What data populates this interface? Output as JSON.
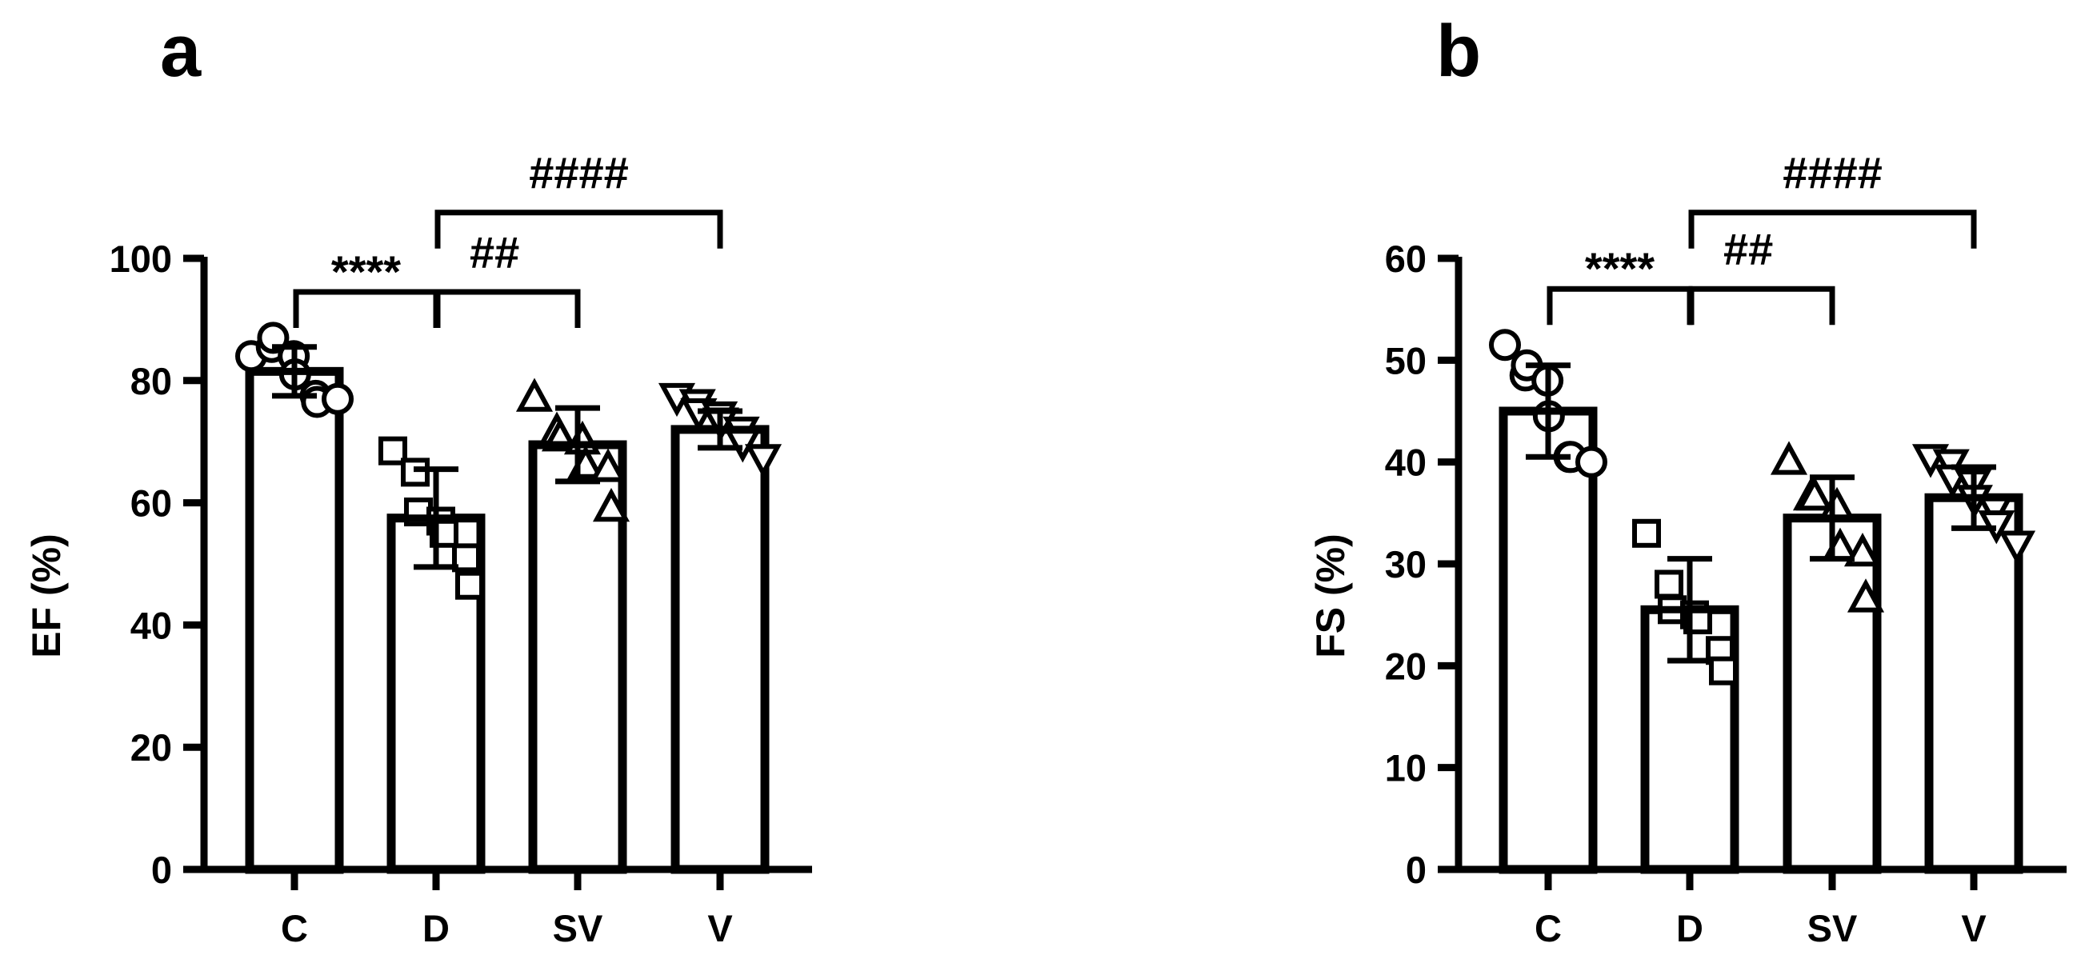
{
  "colors": {
    "ink": "#000000",
    "fill": "#ffffff"
  },
  "chart_data": [
    {
      "type": "bar",
      "panel_label": "a",
      "categories": [
        "C",
        "D",
        "SV",
        "V"
      ],
      "ylabel": "EF (%)",
      "xlabel": "",
      "ylim": [
        0,
        100
      ],
      "yticks": [
        "0",
        "20",
        "40",
        "60",
        "80",
        "100"
      ],
      "grid": false,
      "series": [
        {
          "values": [
            81.5,
            57.5,
            69.5,
            72
          ],
          "error": [
            4,
            8,
            6,
            3
          ],
          "markers": [
            "circle",
            "square",
            "triangle-up",
            "triangle-down"
          ],
          "points": [
            [
              84,
              85.5,
              87,
              84,
              81,
              77.5,
              76.5,
              77
            ],
            [
              68.5,
              65,
              58.5,
              57,
              55,
              51,
              46.5
            ],
            [
              77,
              71.5,
              70.5,
              70,
              66,
              65.5,
              59
            ],
            [
              77.5,
              76.5,
              75,
              74.5,
              73.5,
              72,
              70,
              67.5
            ]
          ]
        }
      ],
      "annotations": [
        {
          "text": "****",
          "from": "C",
          "to": "D",
          "y": 94.5
        },
        {
          "text": "##",
          "from": "D",
          "to": "SV",
          "y": 94.5
        },
        {
          "text": "####",
          "from": "D",
          "to": "V",
          "y": 107.5
        }
      ]
    },
    {
      "type": "bar",
      "panel_label": "b",
      "categories": [
        "C",
        "D",
        "SV",
        "V"
      ],
      "ylabel": "FS (%)",
      "xlabel": "",
      "ylim": [
        0,
        60
      ],
      "yticks": [
        "0",
        "10",
        "20",
        "30",
        "40",
        "50",
        "60"
      ],
      "grid": false,
      "series": [
        {
          "values": [
            45,
            25.5,
            34.5,
            36.5
          ],
          "error": [
            4.5,
            5,
            4,
            3
          ],
          "markers": [
            "circle",
            "square",
            "triangle-up",
            "triangle-down"
          ],
          "points": [
            [
              51.5,
              48.5,
              49.5,
              48,
              44.5,
              40.5,
              40.5,
              40
            ],
            [
              33,
              28,
              25.5,
              25,
              24.5,
              21.5,
              19.5
            ],
            [
              40,
              36.5,
              36.5,
              35.5,
              31.5,
              31,
              26.5
            ],
            [
              40.5,
              40,
              38.5,
              38,
              36.5,
              35.5,
              34,
              32
            ]
          ]
        }
      ],
      "annotations": [
        {
          "text": "****",
          "from": "C",
          "to": "D",
          "y": 57
        },
        {
          "text": "##",
          "from": "D",
          "to": "SV",
          "y": 57
        },
        {
          "text": "####",
          "from": "D",
          "to": "V",
          "y": 64.5
        }
      ]
    }
  ]
}
